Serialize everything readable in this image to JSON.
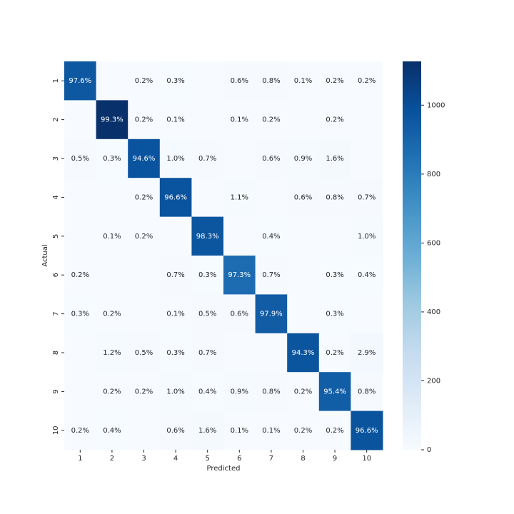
{
  "chart_data": {
    "type": "heatmap",
    "xlabel": "Predicted",
    "ylabel": "Actual",
    "x_categories": [
      "1",
      "2",
      "3",
      "4",
      "5",
      "6",
      "7",
      "8",
      "9",
      "10"
    ],
    "y_categories": [
      "1",
      "2",
      "3",
      "4",
      "5",
      "6",
      "7",
      "8",
      "9",
      "10"
    ],
    "values": [
      [
        97.6,
        null,
        0.2,
        0.3,
        null,
        0.6,
        0.8,
        0.1,
        0.2,
        0.2
      ],
      [
        null,
        99.3,
        0.2,
        0.1,
        null,
        0.1,
        0.2,
        null,
        0.2,
        null
      ],
      [
        0.5,
        0.3,
        94.6,
        1.0,
        0.7,
        null,
        0.6,
        0.9,
        1.6,
        null
      ],
      [
        null,
        null,
        0.2,
        96.6,
        null,
        1.1,
        null,
        0.6,
        0.8,
        0.7
      ],
      [
        null,
        0.1,
        0.2,
        null,
        98.3,
        null,
        0.4,
        null,
        null,
        1.0
      ],
      [
        0.2,
        null,
        null,
        0.7,
        0.3,
        97.3,
        0.7,
        null,
        0.3,
        0.4
      ],
      [
        0.3,
        0.2,
        null,
        0.1,
        0.5,
        0.6,
        97.9,
        null,
        0.3,
        null
      ],
      [
        null,
        1.2,
        0.5,
        0.3,
        0.7,
        null,
        null,
        94.3,
        0.2,
        2.9
      ],
      [
        null,
        0.2,
        0.2,
        1.0,
        0.4,
        0.9,
        0.8,
        0.2,
        95.4,
        0.8
      ],
      [
        0.2,
        0.4,
        null,
        0.6,
        1.6,
        0.1,
        0.1,
        0.2,
        0.2,
        96.6
      ]
    ],
    "value_labels": [
      [
        "97.6%",
        null,
        "0.2%",
        "0.3%",
        null,
        "0.6%",
        "0.8%",
        "0.1%",
        "0.2%",
        "0.2%"
      ],
      [
        null,
        "99.3%",
        "0.2%",
        "0.1%",
        null,
        "0.1%",
        "0.2%",
        null,
        "0.2%",
        null
      ],
      [
        "0.5%",
        "0.3%",
        "94.6%",
        "1.0%",
        "0.7%",
        null,
        "0.6%",
        "0.9%",
        "1.6%",
        null
      ],
      [
        null,
        null,
        "0.2%",
        "96.6%",
        null,
        "1.1%",
        null,
        "0.6%",
        "0.8%",
        "0.7%"
      ],
      [
        null,
        "0.1%",
        "0.2%",
        null,
        "98.3%",
        null,
        "0.4%",
        null,
        null,
        "1.0%"
      ],
      [
        "0.2%",
        null,
        null,
        "0.7%",
        "0.3%",
        "97.3%",
        "0.7%",
        null,
        "0.3%",
        "0.4%"
      ],
      [
        "0.3%",
        "0.2%",
        null,
        "0.1%",
        "0.5%",
        "0.6%",
        "97.9%",
        null,
        "0.3%",
        null
      ],
      [
        null,
        "1.2%",
        "0.5%",
        "0.3%",
        "0.7%",
        null,
        null,
        "94.3%",
        "0.2%",
        "2.9%"
      ],
      [
        null,
        "0.2%",
        "0.2%",
        "1.0%",
        "0.4%",
        "0.9%",
        "0.8%",
        "0.2%",
        "95.4%",
        "0.8%"
      ],
      [
        "0.2%",
        "0.4%",
        null,
        "0.6%",
        "1.6%",
        "0.1%",
        "0.1%",
        "0.2%",
        "0.2%",
        "96.6%"
      ]
    ],
    "counts": [
      [
        956,
        0,
        2,
        3,
        0,
        6,
        8,
        1,
        2,
        2
      ],
      [
        0,
        1127,
        2,
        1,
        0,
        1,
        2,
        0,
        2,
        0
      ],
      [
        5,
        3,
        976,
        10,
        7,
        0,
        6,
        9,
        16,
        0
      ],
      [
        0,
        0,
        2,
        976,
        0,
        11,
        0,
        6,
        8,
        7
      ],
      [
        0,
        1,
        2,
        0,
        965,
        0,
        4,
        0,
        0,
        10
      ],
      [
        2,
        0,
        0,
        6,
        3,
        868,
        6,
        0,
        3,
        4
      ],
      [
        3,
        2,
        0,
        1,
        5,
        6,
        938,
        0,
        3,
        0
      ],
      [
        0,
        12,
        5,
        3,
        7,
        0,
        0,
        969,
        2,
        30
      ],
      [
        0,
        2,
        2,
        10,
        4,
        9,
        8,
        2,
        929,
        8
      ],
      [
        2,
        4,
        0,
        6,
        16,
        1,
        1,
        2,
        2,
        975
      ]
    ],
    "clim": [
      0,
      1127
    ],
    "cticks": [
      0,
      200,
      400,
      600,
      800,
      1000
    ],
    "colormap": [
      "#f7fbff",
      "#deebf7",
      "#c6dbef",
      "#9ecae1",
      "#6baed6",
      "#4292c6",
      "#2171b5",
      "#08519c",
      "#08306b"
    ]
  }
}
